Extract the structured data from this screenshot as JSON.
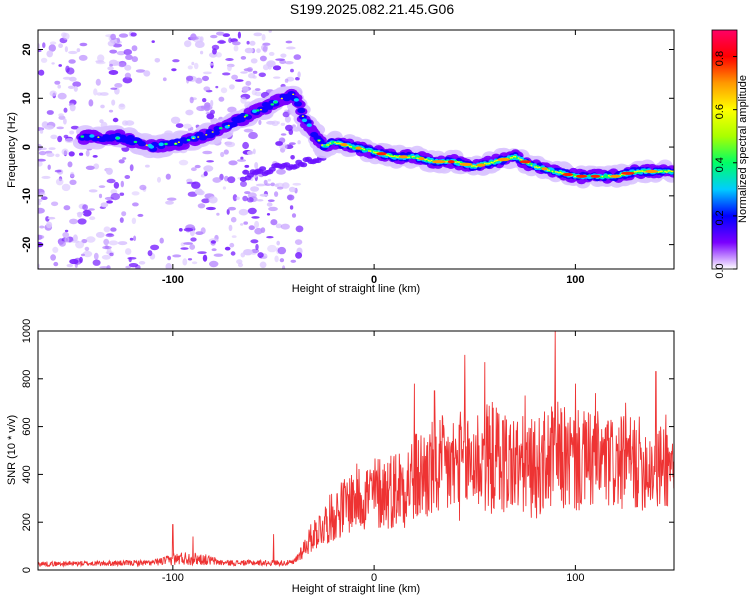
{
  "title": "S199.2025.082.21.45.G06",
  "chart_data": [
    {
      "type": "heatmap",
      "xlabel": "Height of straight line (km)",
      "ylabel": "Frequency (Hz)",
      "xlim": [
        -167,
        149
      ],
      "ylim": [
        -25,
        24
      ],
      "xticks": [
        -100,
        0,
        100
      ],
      "yticks": [
        -20,
        -10,
        0,
        10,
        20
      ],
      "colorbar": {
        "label": "Normalized spectral amplitude",
        "range": [
          0.0,
          0.9
        ],
        "ticks": [
          "0.0",
          "0.2",
          "0.4",
          "0.6",
          "0.8"
        ],
        "colors": [
          "#ffffff",
          "#7a00ff",
          "#0000ff",
          "#00ccff",
          "#00ff66",
          "#aaff00",
          "#ffff00",
          "#ff9900",
          "#ff0000",
          "#ff0066"
        ]
      },
      "ridge": {
        "x": [
          -145,
          -125,
          -110,
          -95,
          -80,
          -70,
          -60,
          -50,
          -40,
          -35,
          -30,
          -25,
          -20,
          -10,
          0,
          10,
          20,
          30,
          40,
          50,
          60,
          70,
          80,
          90,
          100,
          110,
          120,
          130,
          140,
          149
        ],
        "y": [
          2,
          2,
          0,
          1,
          3,
          5,
          7,
          9,
          11,
          6,
          3,
          0,
          1,
          0,
          -1,
          -2,
          -2,
          -3,
          -3,
          -4,
          -3,
          -2,
          -4,
          -5,
          -6,
          -6,
          -6,
          -5,
          -5,
          -5
        ]
      },
      "lower_ridge": {
        "x": [
          -25,
          -35,
          -45,
          -55,
          -65
        ],
        "y": [
          -2,
          -3,
          -4,
          -5,
          -6
        ]
      },
      "noise_region": [
        -167,
        -45
      ]
    },
    {
      "type": "line",
      "xlabel": "Height of straight line (km)",
      "ylabel": "SNR (10 * v/v)",
      "xlim": [
        -167,
        149
      ],
      "ylim": [
        0,
        1000
      ],
      "xticks": [
        -100,
        0,
        100
      ],
      "yticks": [
        0,
        200,
        400,
        600,
        800,
        1000
      ],
      "series": [
        {
          "color": "#ee3333",
          "envelope": {
            "x": [
              -167,
              -110,
              -95,
              -85,
              -75,
              -40,
              -30,
              -20,
              -10,
              0,
              10,
              20,
              30,
              40,
              50,
              60,
              70,
              80,
              90,
              100,
              110,
              120,
              130,
              140,
              149
            ],
            "mean": [
              25,
              30,
              50,
              45,
              30,
              30,
              150,
              230,
              300,
              320,
              340,
              380,
              420,
              430,
              460,
              470,
              440,
              420,
              480,
              450,
              460,
              440,
              450,
              430,
              440
            ],
            "spread": [
              10,
              12,
              30,
              25,
              12,
              12,
              70,
              110,
              140,
              160,
              170,
              200,
              220,
              230,
              240,
              240,
              220,
              210,
              230,
              220,
              210,
              200,
              200,
              190,
              190
            ]
          },
          "peaks": [
            [
              -100,
              190
            ],
            [
              -90,
              140
            ],
            [
              -50,
              150
            ],
            [
              20,
              780
            ],
            [
              30,
              750
            ],
            [
              45,
              900
            ],
            [
              55,
              870
            ],
            [
              75,
              730
            ],
            [
              90,
              1000
            ],
            [
              100,
              780
            ],
            [
              110,
              740
            ],
            [
              125,
              700
            ],
            [
              140,
              830
            ],
            [
              145,
              650
            ]
          ]
        }
      ]
    }
  ]
}
